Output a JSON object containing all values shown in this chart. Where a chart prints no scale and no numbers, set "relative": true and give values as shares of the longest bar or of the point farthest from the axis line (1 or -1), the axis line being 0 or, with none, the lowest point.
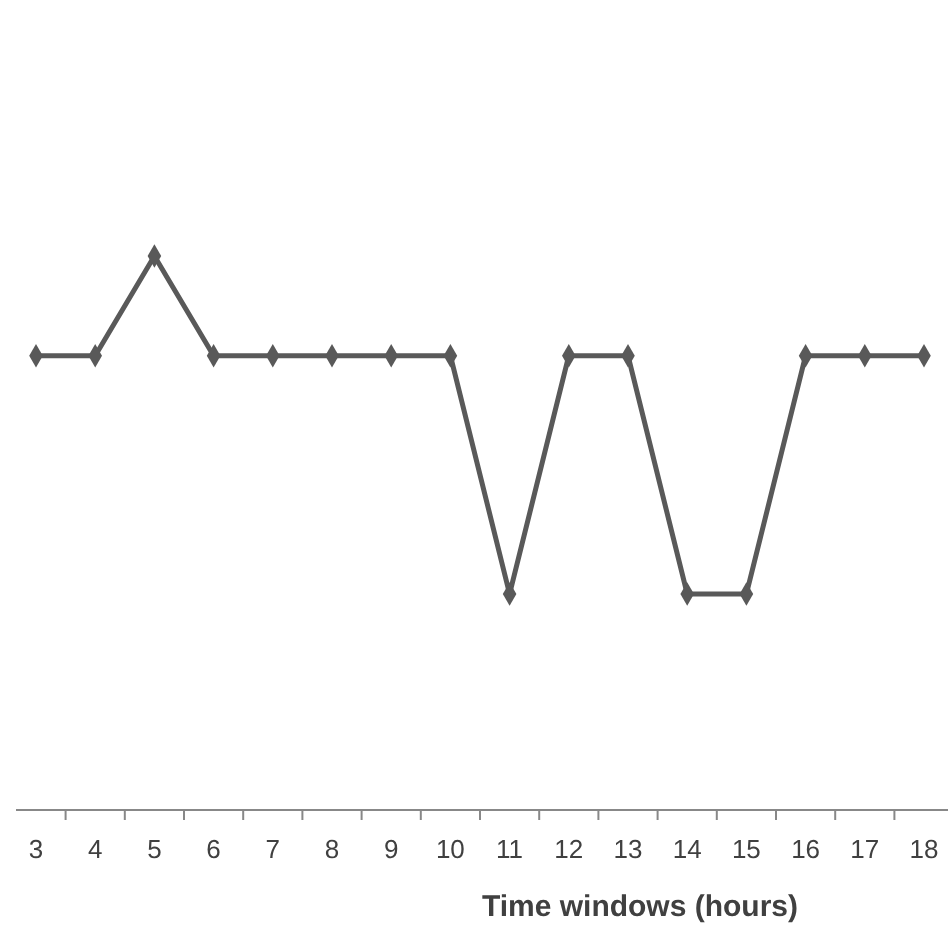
{
  "chart_data": {
    "type": "line",
    "xlabel": "Time windows (hours)",
    "categories": [
      "3",
      "4",
      "5",
      "6",
      "7",
      "8",
      "9",
      "10",
      "11",
      "12",
      "13",
      "14",
      "15",
      "16",
      "17",
      "18"
    ],
    "relative": true,
    "marker": "diamond",
    "line_style": "solid",
    "grid": false,
    "series": [
      {
        "color": "#595959",
        "values": [
          0.82,
          0.82,
          1,
          0.82,
          0.82,
          0.82,
          0.82,
          0.82,
          0.39,
          0.82,
          0.82,
          0.39,
          0.39,
          0.82,
          0.82,
          0.82
        ]
      }
    ]
  }
}
